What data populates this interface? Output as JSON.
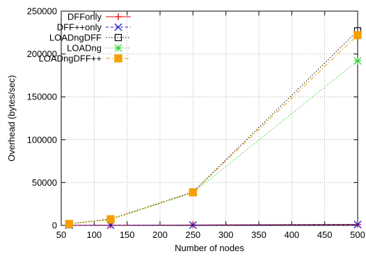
{
  "chart_data": {
    "type": "line",
    "xlabel": "Number of nodes",
    "ylabel": "Overhead (bytes/sec)",
    "xlim": [
      50,
      500
    ],
    "ylim": [
      0,
      250000
    ],
    "xticks": [
      50,
      100,
      150,
      200,
      250,
      300,
      350,
      400,
      450,
      500
    ],
    "yticks": [
      0,
      50000,
      100000,
      150000,
      200000,
      250000
    ],
    "grid": true,
    "legend_position": "top-left",
    "series": [
      {
        "name": "DFFonly",
        "color": "#e8000b",
        "dash": "solid",
        "marker": "plus",
        "x": [
          62,
          125,
          250,
          500
        ],
        "y": [
          150,
          250,
          500,
          1200
        ]
      },
      {
        "name": "DFF++only",
        "color": "#1a1acc",
        "dash": "dashed",
        "marker": "cross",
        "x": [
          62,
          125,
          250,
          500
        ],
        "y": [
          100,
          200,
          400,
          1000
        ]
      },
      {
        "name": "LOADngDFF",
        "color": "#000000",
        "dash": "dotted",
        "marker": "square-open",
        "x": [
          62,
          125,
          250,
          500
        ],
        "y": [
          1800,
          7500,
          39000,
          227000
        ]
      },
      {
        "name": "LOADng",
        "color": "#33cc33",
        "dash": "dotted",
        "marker": "star",
        "x": [
          62,
          125,
          250,
          500
        ],
        "y": [
          1500,
          6800,
          38000,
          192000
        ]
      },
      {
        "name": "LOADngDFF++",
        "color": "#f5a000",
        "dash": "dashdot",
        "marker": "square-filled",
        "x": [
          62,
          125,
          250,
          500
        ],
        "y": [
          1700,
          7200,
          38500,
          222000
        ]
      }
    ]
  }
}
